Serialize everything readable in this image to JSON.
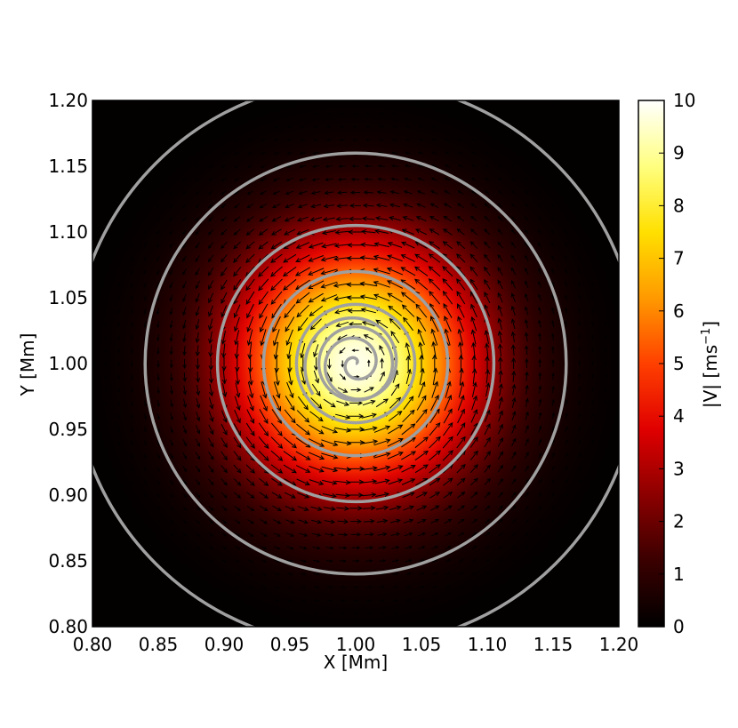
{
  "chart_data": {
    "type": "heatmap",
    "title": "",
    "xlabel": "X [Mm]",
    "ylabel": "Y [Mm]",
    "xlim": [
      0.8,
      1.2
    ],
    "ylim": [
      0.8,
      1.2
    ],
    "x_ticks": [
      "0.80",
      "0.85",
      "0.90",
      "0.95",
      "1.00",
      "1.05",
      "1.10",
      "1.15",
      "1.20"
    ],
    "y_ticks": [
      "0.80",
      "0.85",
      "0.90",
      "0.95",
      "1.00",
      "1.05",
      "1.10",
      "1.15",
      "1.20"
    ],
    "field": {
      "quantity": "|V|",
      "center": [
        1.0,
        1.0
      ],
      "peak_value": 10,
      "profile": "gaussian",
      "gaussian_sigma_mm": 0.065
    },
    "colorbar": {
      "label_base": "|V| [ms",
      "label_exp": "−1",
      "label_close": "]",
      "range": [
        0,
        10
      ],
      "ticks": [
        "0",
        "1",
        "2",
        "3",
        "4",
        "5",
        "6",
        "7",
        "8",
        "9",
        "10"
      ],
      "colormap": [
        "#000000",
        "#3a0000",
        "#8c0000",
        "#e00000",
        "#ff4000",
        "#ff9a00",
        "#ffe000",
        "#ffff80",
        "#ffffff"
      ]
    },
    "overlays": {
      "contour_color": "#a0a0a0",
      "contour_radii_mm": [
        0.215,
        0.16,
        0.105,
        0.07,
        0.045,
        0.028
      ],
      "spiral_center": [
        1.0,
        1.0
      ],
      "spiral_outer_radius_mm": 0.04,
      "vector_field": "counterclockwise rotation (quiver arrows)",
      "vector_grid_spacing_mm": 0.01,
      "arrow_color": "#000000"
    },
    "background_color": "#000000"
  }
}
